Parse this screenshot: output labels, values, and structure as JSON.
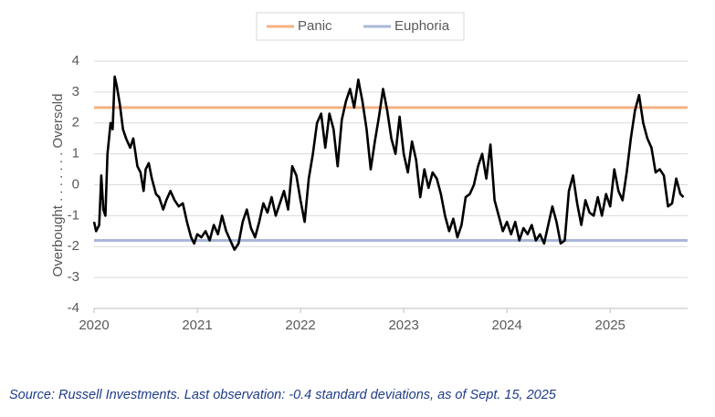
{
  "chart_data": {
    "type": "line",
    "y_axis_label": "Overbought . . . . . . . Oversold",
    "source": "Source: Russell Investments. Last observation: -0.4 standard deviations, as of Sept. 15, 2025",
    "x": [
      2020.0,
      2020.02,
      2020.05,
      2020.07,
      2020.09,
      2020.11,
      2020.13,
      2020.16,
      2020.18,
      2020.2,
      2020.22,
      2020.25,
      2020.28,
      2020.31,
      2020.35,
      2020.38,
      2020.42,
      2020.45,
      2020.48,
      2020.5,
      2020.53,
      2020.56,
      2020.6,
      2020.63,
      2020.67,
      2020.7,
      2020.74,
      2020.78,
      2020.82,
      2020.86,
      2020.9,
      2020.94,
      2020.97,
      2021.0,
      2021.04,
      2021.08,
      2021.12,
      2021.16,
      2021.2,
      2021.24,
      2021.28,
      2021.32,
      2021.36,
      2021.4,
      2021.44,
      2021.48,
      2021.52,
      2021.56,
      2021.6,
      2021.64,
      2021.68,
      2021.72,
      2021.76,
      2021.8,
      2021.84,
      2021.88,
      2021.92,
      2021.96,
      2022.0,
      2022.04,
      2022.08,
      2022.12,
      2022.16,
      2022.2,
      2022.24,
      2022.28,
      2022.32,
      2022.36,
      2022.4,
      2022.44,
      2022.48,
      2022.52,
      2022.56,
      2022.6,
      2022.64,
      2022.68,
      2022.72,
      2022.76,
      2022.8,
      2022.84,
      2022.88,
      2022.92,
      2022.96,
      2023.0,
      2023.04,
      2023.08,
      2023.12,
      2023.16,
      2023.2,
      2023.24,
      2023.28,
      2023.32,
      2023.36,
      2023.4,
      2023.44,
      2023.48,
      2023.52,
      2023.56,
      2023.6,
      2023.64,
      2023.68,
      2023.72,
      2023.76,
      2023.8,
      2023.84,
      2023.88,
      2023.92,
      2023.96,
      2024.0,
      2024.04,
      2024.08,
      2024.12,
      2024.16,
      2024.2,
      2024.24,
      2024.28,
      2024.32,
      2024.36,
      2024.4,
      2024.44,
      2024.48,
      2024.52,
      2024.56,
      2024.6,
      2024.64,
      2024.68,
      2024.72,
      2024.76,
      2024.8,
      2024.84,
      2024.88,
      2024.92,
      2024.96,
      2025.0,
      2025.04,
      2025.08,
      2025.12,
      2025.16,
      2025.2,
      2025.24,
      2025.28,
      2025.32,
      2025.36,
      2025.4,
      2025.44,
      2025.48,
      2025.52,
      2025.56,
      2025.6,
      2025.64,
      2025.68,
      2025.71
    ],
    "series": [
      {
        "color": "#000000",
        "values": [
          -1.2,
          -1.5,
          -1.3,
          0.3,
          -0.8,
          -1.0,
          1.0,
          2.0,
          1.8,
          3.5,
          3.2,
          2.6,
          1.8,
          1.5,
          1.2,
          1.5,
          0.6,
          0.4,
          -0.2,
          0.5,
          0.7,
          0.2,
          -0.3,
          -0.4,
          -0.8,
          -0.5,
          -0.2,
          -0.5,
          -0.7,
          -0.6,
          -1.2,
          -1.7,
          -1.9,
          -1.6,
          -1.7,
          -1.5,
          -1.8,
          -1.3,
          -1.6,
          -1.0,
          -1.5,
          -1.8,
          -2.1,
          -1.9,
          -1.2,
          -0.8,
          -1.4,
          -1.7,
          -1.2,
          -0.6,
          -0.9,
          -0.4,
          -1.0,
          -0.6,
          -0.2,
          -0.8,
          0.6,
          0.3,
          -0.5,
          -1.2,
          0.2,
          1.0,
          2.0,
          2.3,
          1.2,
          2.3,
          1.8,
          0.6,
          2.1,
          2.7,
          3.1,
          2.5,
          3.4,
          2.7,
          1.8,
          0.5,
          1.4,
          2.2,
          3.1,
          2.4,
          1.5,
          1.0,
          2.2,
          1.0,
          0.4,
          1.4,
          0.8,
          -0.4,
          0.5,
          -0.1,
          0.4,
          0.2,
          -0.3,
          -1.0,
          -1.5,
          -1.1,
          -1.7,
          -1.3,
          -0.4,
          -0.3,
          0.0,
          0.6,
          1.0,
          0.2,
          1.3,
          -0.5,
          -1.0,
          -1.5,
          -1.2,
          -1.6,
          -1.2,
          -1.8,
          -1.4,
          -1.6,
          -1.3,
          -1.8,
          -1.6,
          -1.9,
          -1.3,
          -0.7,
          -1.2,
          -1.9,
          -1.8,
          -0.2,
          0.3,
          -0.6,
          -1.3,
          -0.5,
          -0.9,
          -1.0,
          -0.4,
          -1.0,
          -0.3,
          -0.7,
          0.5,
          -0.2,
          -0.5,
          0.4,
          1.5,
          2.4,
          2.9,
          2.0,
          1.5,
          1.2,
          0.4,
          0.5,
          0.3,
          -0.7,
          -0.6,
          0.2,
          -0.3,
          -0.4
        ]
      }
    ],
    "reference_lines": [
      {
        "name": "Panic",
        "color": "#f4b183",
        "value": 2.5
      },
      {
        "name": "Euphoria",
        "color": "#a9b8d8",
        "value": -1.8
      }
    ],
    "xlim": [
      2020,
      2025.75
    ],
    "xticks": [
      2020,
      2021,
      2022,
      2023,
      2024,
      2025
    ],
    "ylim": [
      -4,
      4
    ],
    "yticks": [
      -4,
      -3,
      -2,
      -1,
      0,
      1,
      2,
      3,
      4
    ],
    "grid": true,
    "legend": "top"
  }
}
